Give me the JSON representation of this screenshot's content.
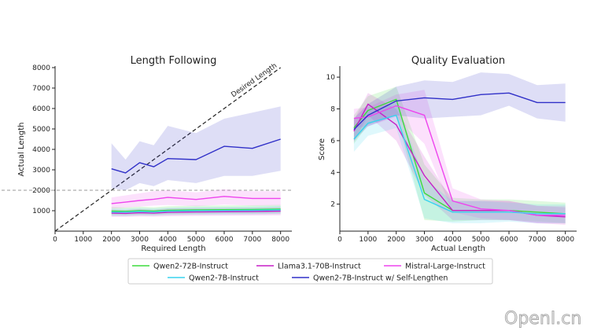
{
  "chart_data": [
    {
      "type": "line",
      "title": "Length Following",
      "xlabel": "Required Length",
      "ylabel": "Actual Length",
      "xlim": [
        0,
        8400
      ],
      "ylim": [
        0,
        8000
      ],
      "xticks": [
        0,
        1000,
        2000,
        3000,
        4000,
        5000,
        6000,
        7000,
        8000
      ],
      "yticks": [
        1000,
        2000,
        3000,
        4000,
        5000,
        6000,
        7000,
        8000
      ],
      "reference_lines": [
        {
          "name": "Desired Length",
          "style": "diagonal-dashed",
          "from": [
            0,
            0
          ],
          "to": [
            8000,
            8000
          ]
        },
        {
          "name": "2000-threshold",
          "style": "horizontal-dashed",
          "y": 2000
        }
      ],
      "annotation": "Desired Length",
      "x": [
        2000,
        2500,
        3000,
        3500,
        4000,
        5000,
        6000,
        7000,
        8000
      ],
      "series": [
        {
          "name": "Qwen2-72B-Instruct",
          "color": "#3ddc3d",
          "values": [
            980,
            970,
            1000,
            980,
            1020,
            1040,
            1050,
            1060,
            1080
          ],
          "band_low": [
            780,
            780,
            800,
            790,
            820,
            830,
            850,
            850,
            870
          ],
          "band_high": [
            1180,
            1160,
            1200,
            1170,
            1220,
            1250,
            1260,
            1270,
            1290
          ]
        },
        {
          "name": "Llama3.1-70B-Instruct",
          "color": "#c71fc7",
          "values": [
            880,
            870,
            900,
            880,
            920,
            940,
            950,
            960,
            980
          ],
          "band_low": [
            700,
            700,
            720,
            710,
            730,
            750,
            760,
            770,
            780
          ],
          "band_high": [
            1060,
            1040,
            1080,
            1050,
            1110,
            1130,
            1140,
            1150,
            1180
          ]
        },
        {
          "name": "Mistral-Large-Instruct",
          "color": "#ee44ee",
          "values": [
            1350,
            1420,
            1500,
            1560,
            1650,
            1550,
            1700,
            1600,
            1600
          ],
          "band_low": [
            1100,
            1150,
            1200,
            1250,
            1280,
            1220,
            1300,
            1250,
            1250
          ],
          "band_high": [
            1650,
            1750,
            1850,
            1950,
            2000,
            1900,
            2050,
            1950,
            1950
          ]
        },
        {
          "name": "Qwen2-7B-Instruct",
          "color": "#39d3ee",
          "values": [
            930,
            930,
            960,
            940,
            980,
            1000,
            1010,
            1020,
            1040
          ],
          "band_low": [
            760,
            750,
            780,
            770,
            800,
            810,
            820,
            830,
            850
          ],
          "band_high": [
            1100,
            1100,
            1130,
            1110,
            1150,
            1180,
            1190,
            1200,
            1230
          ]
        },
        {
          "name": "Qwen2-7B-Instruct w/ Self-Lengthen",
          "color": "#3030c8",
          "values": [
            3050,
            2850,
            3350,
            3150,
            3550,
            3500,
            4150,
            4050,
            4500
          ],
          "band_low": [
            2100,
            2000,
            2350,
            2200,
            2500,
            2350,
            2700,
            2700,
            2950
          ],
          "band_high": [
            4300,
            3500,
            4400,
            4200,
            5150,
            4800,
            5500,
            5800,
            6100
          ]
        }
      ]
    },
    {
      "type": "line",
      "title": "Quality Evaluation",
      "xlabel": "Actual Length",
      "ylabel": "Score",
      "xlim": [
        0,
        8400
      ],
      "ylim": [
        0.3,
        10.6
      ],
      "xticks": [
        0,
        1000,
        2000,
        3000,
        4000,
        5000,
        6000,
        7000,
        8000
      ],
      "yticks": [
        2,
        4,
        6,
        8,
        10
      ],
      "series": [
        {
          "name": "Qwen2-72B-Instruct",
          "color": "#3ddc3d",
          "x": [
            500,
            1000,
            2000,
            3000,
            4000,
            5000,
            6000,
            7000,
            8000
          ],
          "values": [
            6.8,
            7.9,
            8.6,
            2.7,
            1.6,
            1.6,
            1.6,
            1.5,
            1.4
          ],
          "band_low": [
            5.8,
            7.0,
            7.6,
            1.0,
            0.9,
            1.0,
            1.0,
            0.9,
            0.8
          ],
          "band_high": [
            7.6,
            8.8,
            9.4,
            4.5,
            2.4,
            2.3,
            2.3,
            2.2,
            2.1
          ]
        },
        {
          "name": "Llama3.1-70B-Instruct",
          "color": "#c71fc7",
          "x": [
            500,
            1000,
            2000,
            3000,
            4000,
            5000,
            6000,
            7000,
            8000
          ],
          "values": [
            6.6,
            8.3,
            7.0,
            3.8,
            1.6,
            1.6,
            1.6,
            1.3,
            1.2
          ],
          "band_low": [
            5.9,
            7.6,
            6.0,
            2.6,
            1.0,
            1.0,
            1.0,
            0.8,
            0.7
          ],
          "band_high": [
            7.3,
            9.0,
            8.0,
            5.0,
            2.2,
            2.2,
            2.2,
            1.9,
            1.8
          ]
        },
        {
          "name": "Mistral-Large-Instruct",
          "color": "#ee44ee",
          "x": [
            500,
            1000,
            2000,
            3000,
            4000,
            5000,
            6000,
            7000,
            8000
          ],
          "values": [
            7.4,
            7.5,
            8.2,
            7.6,
            2.2,
            1.7,
            1.6,
            1.3,
            1.3
          ],
          "band_low": [
            6.8,
            6.9,
            7.5,
            5.8,
            1.5,
            1.1,
            1.0,
            0.8,
            0.8
          ],
          "band_high": [
            8.0,
            8.1,
            8.9,
            9.2,
            3.0,
            2.3,
            2.2,
            1.9,
            1.9
          ]
        },
        {
          "name": "Qwen2-7B-Instruct",
          "color": "#39d3ee",
          "x": [
            500,
            1000,
            2000,
            3000,
            4000,
            5000,
            6000,
            7000,
            8000
          ],
          "values": [
            6.1,
            7.1,
            7.6,
            2.3,
            1.5,
            1.5,
            1.5,
            1.4,
            1.4
          ],
          "band_low": [
            5.3,
            6.3,
            6.8,
            1.1,
            0.8,
            0.8,
            0.9,
            0.8,
            0.8
          ],
          "band_high": [
            6.9,
            7.9,
            8.4,
            3.6,
            2.2,
            2.2,
            2.1,
            2.0,
            2.0
          ]
        },
        {
          "name": "Qwen2-7B-Instruct w/ Self-Lengthen",
          "color": "#3030c8",
          "x": [
            500,
            1000,
            2000,
            3000,
            4000,
            5000,
            6000,
            7000,
            8000
          ],
          "values": [
            6.7,
            7.6,
            8.5,
            8.7,
            8.6,
            8.9,
            9.0,
            8.4,
            8.4
          ],
          "band_low": [
            6.0,
            6.9,
            7.6,
            7.4,
            7.5,
            7.6,
            8.2,
            7.4,
            7.2
          ],
          "band_high": [
            7.4,
            8.3,
            9.4,
            9.8,
            9.7,
            10.3,
            10.2,
            9.5,
            9.6
          ]
        }
      ]
    }
  ],
  "legend": {
    "placement": "bottom-center",
    "columns": [
      [
        "Qwen2-72B-Instruct",
        "Qwen2-7B-Instruct"
      ],
      [
        "Llama3.1-70B-Instruct",
        "Qwen2-7B-Instruct w/ Self-Lengthen"
      ],
      [
        "Mistral-Large-Instruct"
      ]
    ]
  },
  "watermark": "OpenI.cn"
}
